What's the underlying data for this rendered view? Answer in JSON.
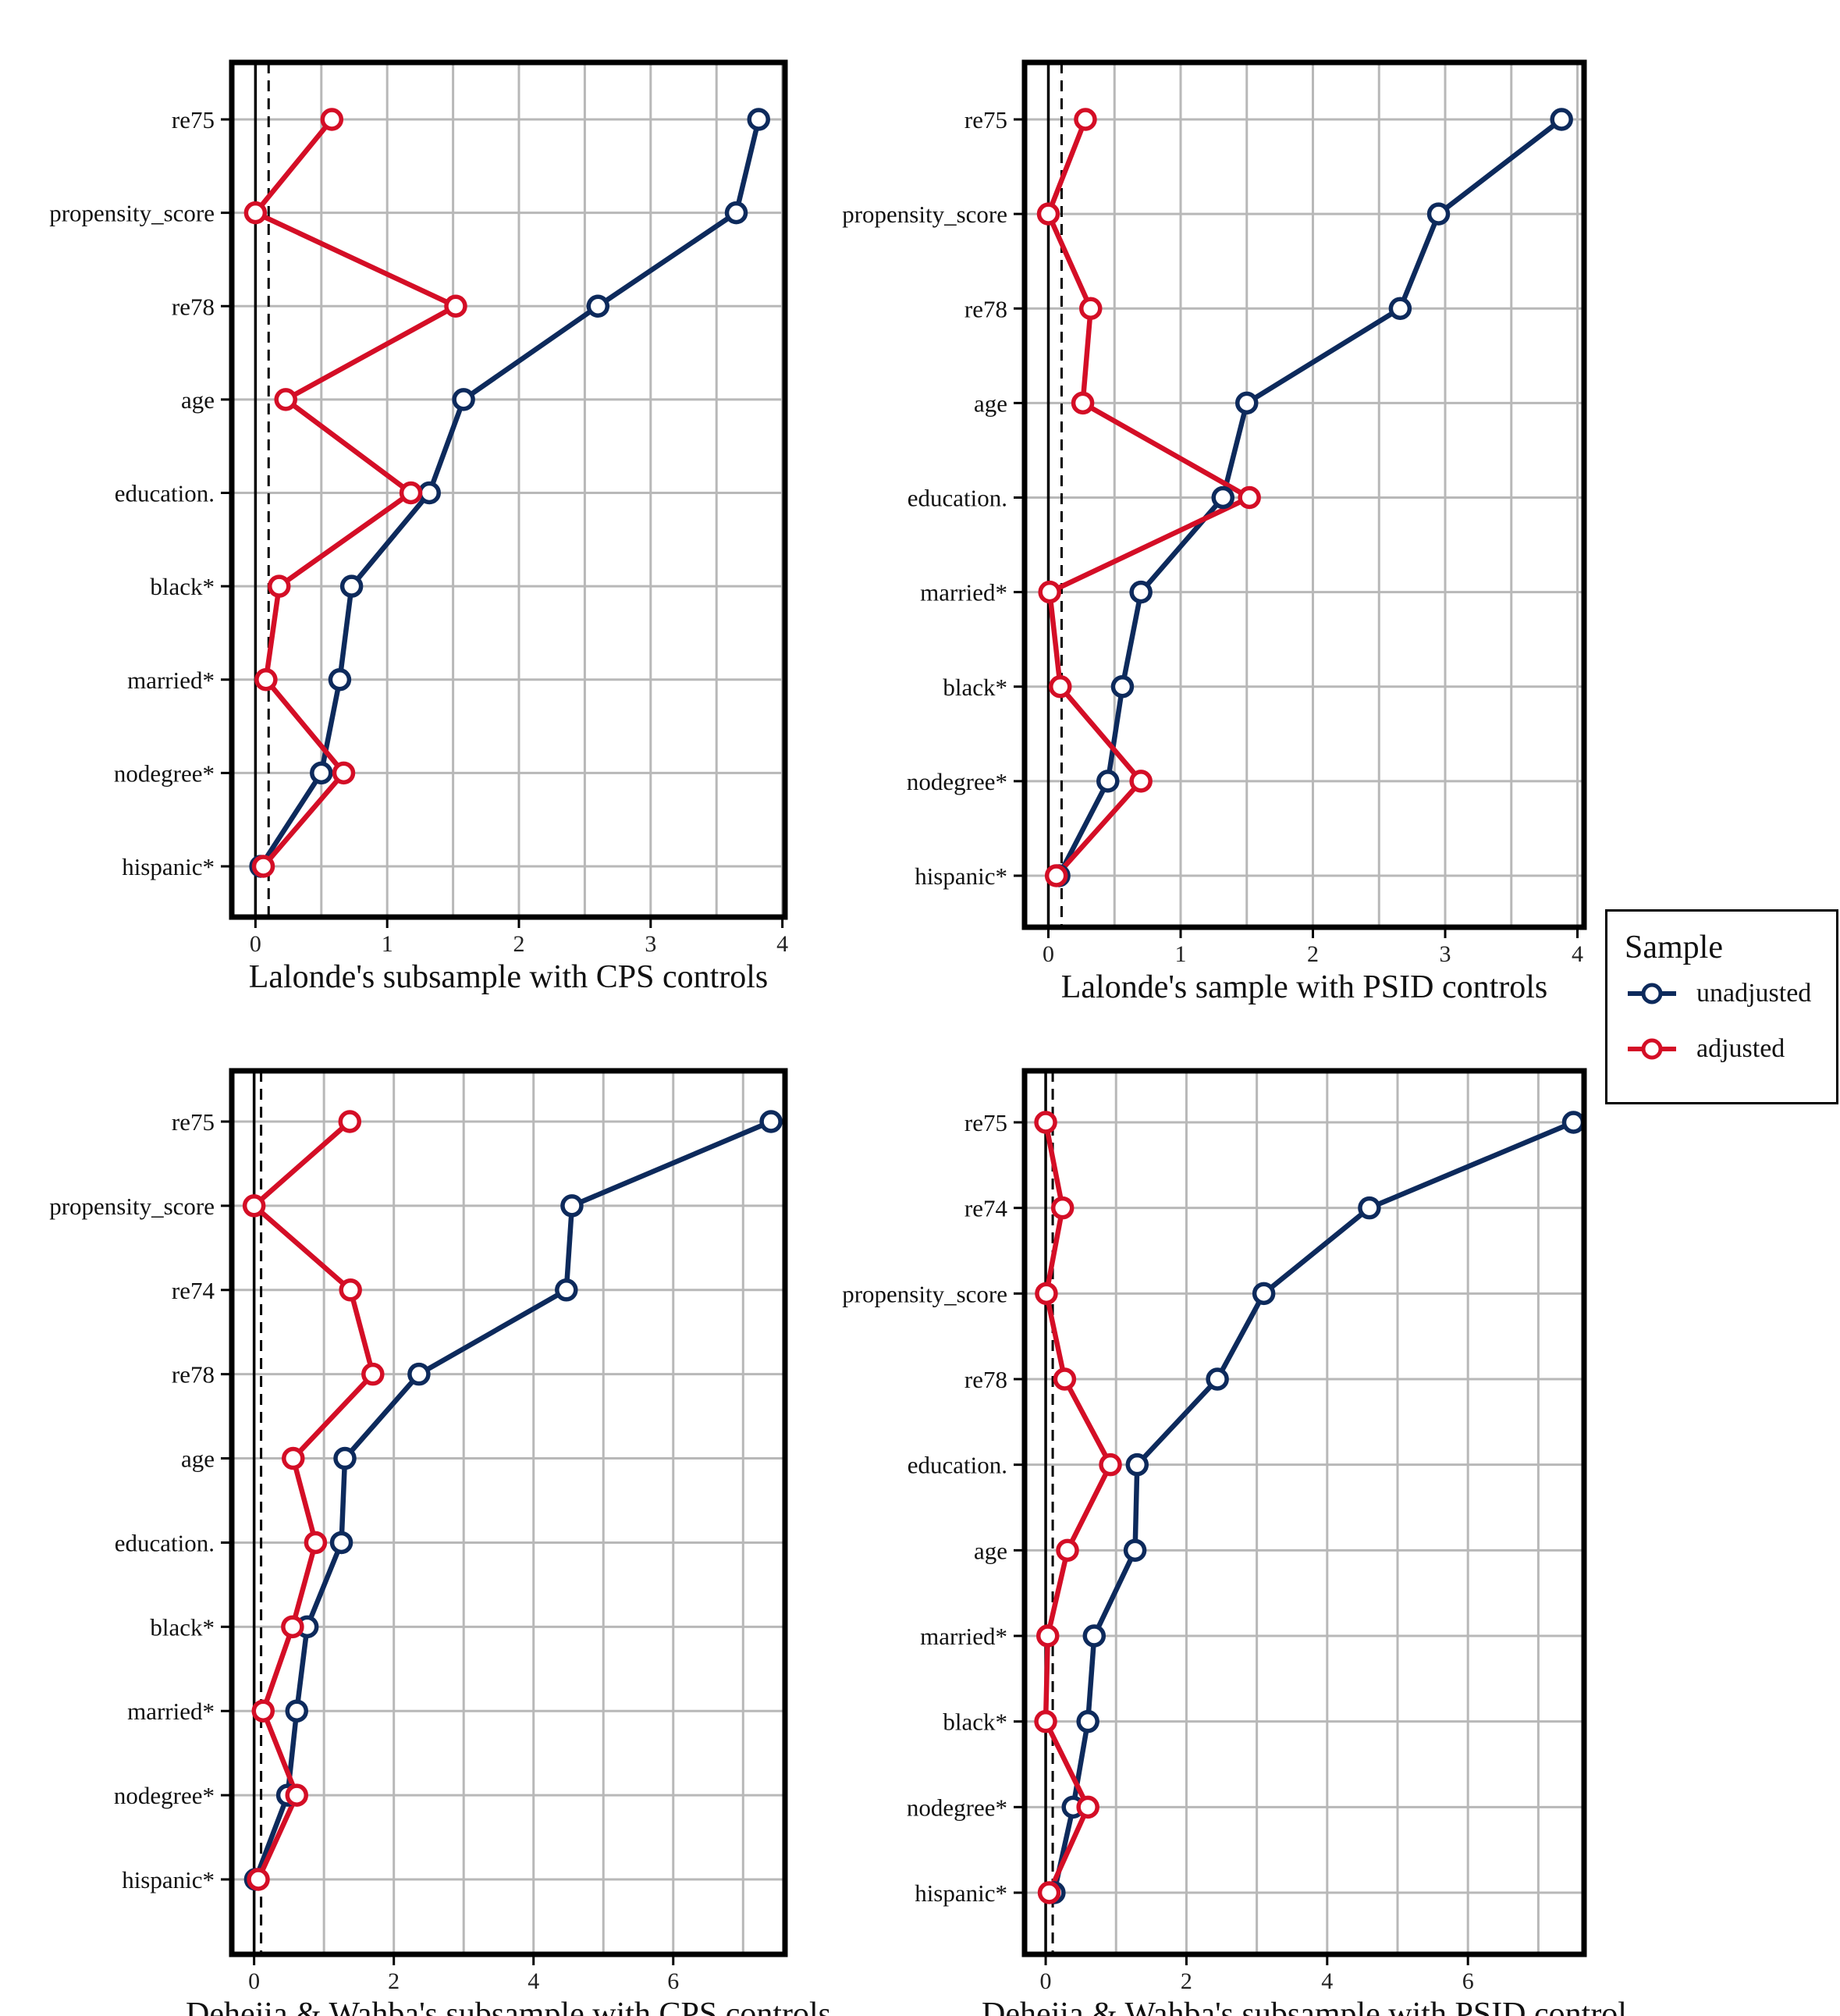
{
  "colors": {
    "unadjusted": "#0d2a5c",
    "adjusted": "#d40e26",
    "grid": "#b8b8b8",
    "frame": "#000000"
  },
  "legend": {
    "title": "Sample",
    "items": [
      {
        "key": "unadjusted",
        "label": "unadjusted"
      },
      {
        "key": "adjusted",
        "label": "adjusted"
      }
    ]
  },
  "chart_data": [
    {
      "type": "line",
      "xlabel": "Lalonde's subsample with CPS controls",
      "xlim": [
        -0.18,
        4.02
      ],
      "xticks": [
        0,
        1,
        2,
        3,
        4
      ],
      "threshold": 0.1,
      "categories": [
        "re75",
        "propensity_score",
        "re78",
        "age",
        "education.",
        "black*",
        "married*",
        "nodegree*",
        "hispanic*"
      ],
      "series": [
        {
          "name": "unadjusted",
          "values": [
            3.82,
            3.65,
            2.6,
            1.58,
            1.32,
            0.73,
            0.64,
            0.5,
            0.04
          ]
        },
        {
          "name": "adjusted",
          "values": [
            0.58,
            0.0,
            1.52,
            0.23,
            1.18,
            0.18,
            0.08,
            0.67,
            0.06
          ]
        }
      ]
    },
    {
      "type": "line",
      "xlabel": "Lalonde's sample with PSID controls",
      "xlim": [
        -0.18,
        4.05
      ],
      "xticks": [
        0,
        1,
        2,
        3,
        4
      ],
      "threshold": 0.1,
      "categories": [
        "re75",
        "propensity_score",
        "re78",
        "age",
        "education.",
        "married*",
        "black*",
        "nodegree*",
        "hispanic*"
      ],
      "series": [
        {
          "name": "unadjusted",
          "values": [
            3.88,
            2.95,
            2.66,
            1.5,
            1.32,
            0.7,
            0.56,
            0.45,
            0.08
          ]
        },
        {
          "name": "adjusted",
          "values": [
            0.28,
            0.0,
            0.32,
            0.26,
            1.52,
            0.01,
            0.09,
            0.7,
            0.06
          ]
        }
      ]
    },
    {
      "type": "line",
      "xlabel": "Dehejia & Wahba's subsample with CPS controls",
      "xlim": [
        -0.32,
        7.6
      ],
      "xticks": [
        0,
        2,
        4,
        6
      ],
      "threshold": 0.1,
      "categories": [
        "re75",
        "propensity_score",
        "re74",
        "re78",
        "age",
        "education.",
        "black*",
        "married*",
        "nodegree*",
        "hispanic*"
      ],
      "series": [
        {
          "name": "unadjusted",
          "values": [
            7.4,
            4.55,
            4.47,
            2.36,
            1.3,
            1.25,
            0.76,
            0.61,
            0.48,
            0.02
          ]
        },
        {
          "name": "adjusted",
          "values": [
            1.37,
            0.0,
            1.38,
            1.7,
            0.56,
            0.88,
            0.55,
            0.13,
            0.61,
            0.06
          ]
        }
      ]
    },
    {
      "type": "line",
      "xlabel": "Dehejia & Wahba's subsample with PSID control",
      "xlim": [
        -0.3,
        7.65
      ],
      "xticks": [
        0,
        2,
        4,
        6
      ],
      "threshold": 0.1,
      "categories": [
        "re75",
        "re74",
        "propensity_score",
        "re78",
        "education.",
        "age",
        "married*",
        "black*",
        "nodegree*",
        "hispanic*"
      ],
      "series": [
        {
          "name": "unadjusted",
          "values": [
            7.5,
            4.6,
            3.1,
            2.44,
            1.3,
            1.27,
            0.69,
            0.6,
            0.39,
            0.12
          ]
        },
        {
          "name": "adjusted",
          "values": [
            0.0,
            0.24,
            0.01,
            0.27,
            0.92,
            0.31,
            0.03,
            0.0,
            0.6,
            0.05
          ]
        }
      ]
    }
  ]
}
